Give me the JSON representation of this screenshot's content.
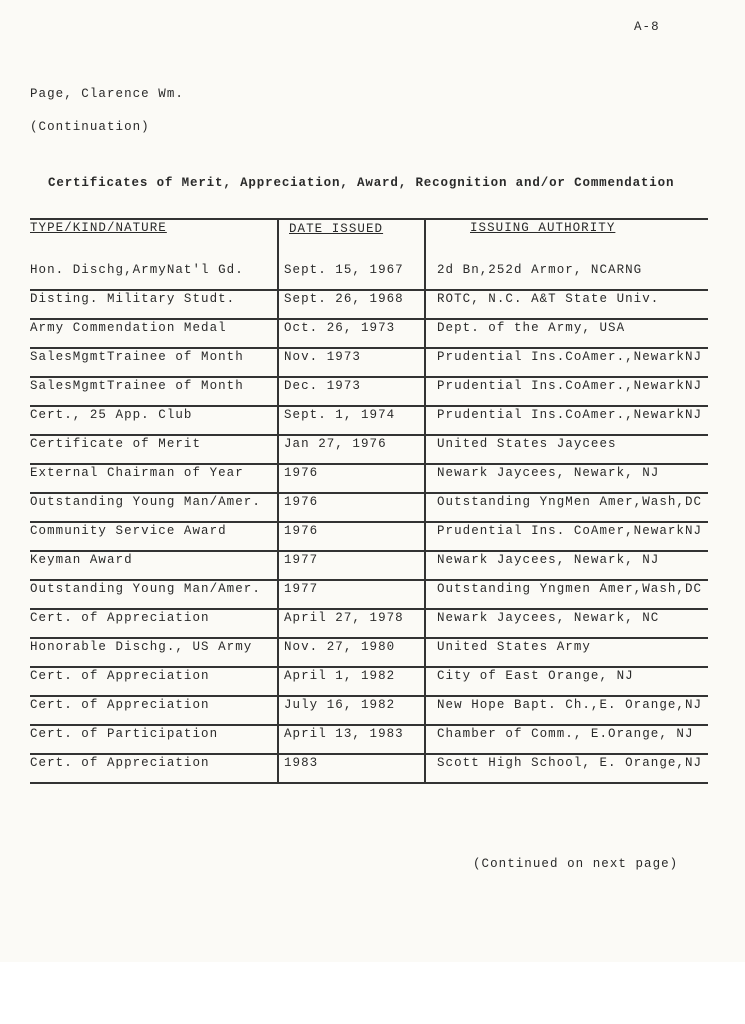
{
  "page_label": "A-8",
  "name": "Page, Clarence Wm.",
  "continuation": "(Continuation)",
  "section_title": "Certificates of Merit, Appreciation, Award, Recognition and/or Commendation",
  "table": {
    "headers": [
      "TYPE/KIND/NATURE",
      "DATE ISSUED",
      "ISSUING AUTHORITY"
    ],
    "rows": [
      [
        "Hon. Dischg,ArmyNat'l Gd.",
        "Sept. 15, 1967",
        "2d Bn,252d Armor, NCARNG"
      ],
      [
        "Disting. Military Studt.",
        "Sept. 26, 1968",
        "ROTC, N.C. A&T State Univ."
      ],
      [
        "Army Commendation Medal",
        "Oct. 26, 1973",
        "Dept. of the Army, USA"
      ],
      [
        "SalesMgmtTrainee of Month",
        "Nov. 1973",
        "Prudential Ins.CoAmer.,NewarkNJ"
      ],
      [
        "SalesMgmtTrainee of Month",
        "Dec. 1973",
        "Prudential Ins.CoAmer.,NewarkNJ"
      ],
      [
        "Cert., 25 App. Club",
        "Sept. 1, 1974",
        "Prudential Ins.CoAmer.,NewarkNJ"
      ],
      [
        "Certificate of Merit",
        "Jan 27, 1976",
        "United States Jaycees"
      ],
      [
        "External Chairman of Year",
        "1976",
        "Newark Jaycees, Newark, NJ"
      ],
      [
        "Outstanding Young Man/Amer.",
        "1976",
        "Outstanding YngMen Amer,Wash,DC"
      ],
      [
        "Community Service Award",
        "1976",
        "Prudential Ins. CoAmer,NewarkNJ"
      ],
      [
        "Keyman Award",
        "1977",
        "Newark Jaycees, Newark, NJ"
      ],
      [
        "Outstanding Young Man/Amer.",
        "1977",
        "Outstanding Yngmen Amer,Wash,DC"
      ],
      [
        "Cert. of Appreciation",
        "April 27, 1978",
        "Newark Jaycees, Newark, NC"
      ],
      [
        "Honorable Dischg., US Army",
        "Nov. 27, 1980",
        "United States Army"
      ],
      [
        "Cert. of Appreciation",
        "April 1, 1982",
        "City of East Orange, NJ"
      ],
      [
        "Cert. of Appreciation",
        "July 16, 1982",
        "New Hope Bapt. Ch.,E. Orange,NJ"
      ],
      [
        "Cert. of Participation",
        "April 13, 1983",
        "Chamber of Comm., E.Orange, NJ"
      ],
      [
        "Cert. of Appreciation",
        "1983",
        "Scott High School, E. Orange,NJ"
      ]
    ]
  },
  "footer": "(Continued on next page)"
}
